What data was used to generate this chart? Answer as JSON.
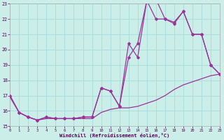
{
  "xlabel": "Windchill (Refroidissement éolien,°C)",
  "bg_color": "#cceee8",
  "grid_color": "#aaddda",
  "line_color": "#993399",
  "xlim": [
    0,
    23
  ],
  "ylim": [
    15,
    23
  ],
  "xticks": [
    0,
    1,
    2,
    3,
    4,
    5,
    6,
    7,
    8,
    9,
    10,
    11,
    12,
    13,
    14,
    15,
    16,
    17,
    18,
    19,
    20,
    21,
    22,
    23
  ],
  "yticks": [
    15,
    16,
    17,
    18,
    19,
    20,
    21,
    22,
    23
  ],
  "line1_x": [
    0,
    1,
    2,
    3,
    4,
    5,
    6,
    7,
    8,
    9,
    10,
    11,
    12,
    13,
    14,
    15,
    16,
    17,
    18,
    19,
    20,
    21,
    22,
    23
  ],
  "line1_y": [
    16.9,
    15.9,
    15.6,
    15.4,
    15.5,
    15.5,
    15.5,
    15.5,
    15.5,
    15.5,
    15.9,
    16.1,
    16.2,
    16.2,
    16.3,
    16.5,
    16.7,
    17.0,
    17.4,
    17.7,
    17.9,
    18.1,
    18.3,
    18.4
  ],
  "line2_x": [
    0,
    1,
    2,
    3,
    4,
    5,
    6,
    7,
    8,
    9,
    10,
    11,
    12,
    13,
    14,
    15,
    16,
    17,
    18,
    19,
    20,
    21,
    22,
    23
  ],
  "line2_y": [
    17.0,
    15.9,
    15.6,
    15.4,
    15.6,
    15.5,
    15.5,
    15.5,
    15.6,
    15.6,
    17.5,
    17.3,
    16.3,
    20.4,
    19.5,
    23.2,
    23.3,
    22.0,
    21.8,
    22.5,
    21.0,
    21.0,
    19.0,
    18.4
  ],
  "line3_x": [
    0,
    1,
    2,
    3,
    4,
    5,
    6,
    7,
    8,
    9,
    10,
    11,
    12,
    13,
    14,
    15,
    16,
    17,
    18,
    19,
    20,
    21,
    22,
    23
  ],
  "line3_y": [
    17.0,
    15.9,
    15.6,
    15.4,
    15.6,
    15.5,
    15.5,
    15.5,
    15.6,
    15.6,
    17.5,
    17.3,
    16.3,
    19.5,
    20.4,
    23.2,
    22.0,
    22.0,
    21.7,
    22.5,
    21.0,
    21.0,
    19.0,
    18.4
  ]
}
